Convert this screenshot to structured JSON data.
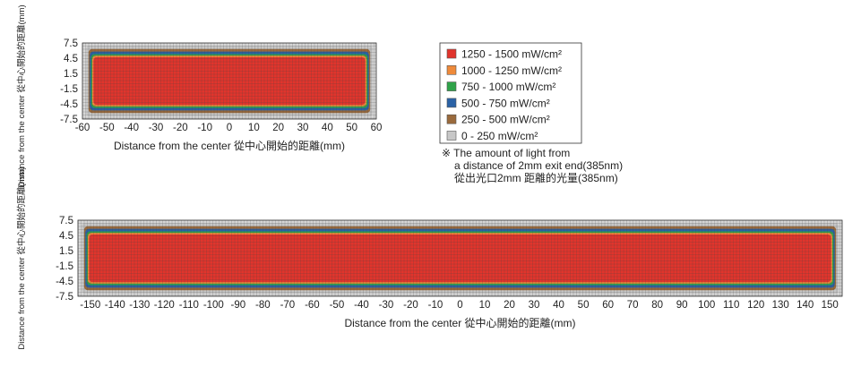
{
  "chart_data": [
    {
      "type": "heatmap",
      "title": "",
      "xlabel": "Distance from the center 從中心開始的距離(mm)",
      "ylabel": "Distance from the center 從中心開始的距離(mm)",
      "xlim": [
        -60,
        60
      ],
      "ylim": [
        -7.5,
        7.5
      ],
      "x_ticks": [
        "-60",
        "-50",
        "-40",
        "-30",
        "-20",
        "-10",
        "0",
        "10",
        "20",
        "30",
        "40",
        "50",
        "60"
      ],
      "y_ticks": [
        "7.5",
        "4.5",
        "1.5",
        "-1.5",
        "-4.5",
        "-7.5"
      ],
      "grid": true,
      "rings": [
        {
          "band": "0 - 250",
          "x": [
            -58.5,
            58.5
          ],
          "y": [
            -7.0,
            7.0
          ]
        },
        {
          "band": "250 - 500",
          "x": [
            -57.5,
            57.5
          ],
          "y": [
            -6.3,
            6.3
          ]
        },
        {
          "band": "500 - 750",
          "x": [
            -57.0,
            57.0
          ],
          "y": [
            -5.8,
            5.8
          ]
        },
        {
          "band": "750 - 1000",
          "x": [
            -56.5,
            56.5
          ],
          "y": [
            -5.3,
            5.3
          ]
        },
        {
          "band": "1000 - 1250",
          "x": [
            -56.0,
            56.0
          ],
          "y": [
            -5.0,
            5.0
          ]
        },
        {
          "band": "1250 - 1500",
          "x": [
            -55.5,
            55.5
          ],
          "y": [
            -4.7,
            4.7
          ]
        }
      ]
    },
    {
      "type": "heatmap",
      "title": "",
      "xlabel": "Distance from the center 從中心開始的距離(mm)",
      "ylabel": "Distance from the center 從中心開始的距離(mm)",
      "xlim": [
        -155,
        155
      ],
      "ylim": [
        -7.5,
        7.5
      ],
      "x_ticks": [
        "-150",
        "-140",
        "-130",
        "-120",
        "-110",
        "-100",
        "-90",
        "-80",
        "-70",
        "-60",
        "-50",
        "-40",
        "-30",
        "-20",
        "-10",
        "0",
        "10",
        "20",
        "30",
        "40",
        "50",
        "60",
        "70",
        "80",
        "90",
        "100",
        "110",
        "120",
        "130",
        "140",
        "150"
      ],
      "y_ticks": [
        "7.5",
        "4.5",
        "1.5",
        "-1.5",
        "-4.5",
        "-7.5"
      ],
      "grid": true,
      "rings": [
        {
          "band": "0 - 250",
          "x": [
            -153.5,
            153.5
          ],
          "y": [
            -7.0,
            7.0
          ]
        },
        {
          "band": "250 - 500",
          "x": [
            -152.5,
            152.5
          ],
          "y": [
            -6.3,
            6.3
          ]
        },
        {
          "band": "500 - 750",
          "x": [
            -152.0,
            152.0
          ],
          "y": [
            -5.8,
            5.8
          ]
        },
        {
          "band": "750 - 1000",
          "x": [
            -151.5,
            151.5
          ],
          "y": [
            -5.3,
            5.3
          ]
        },
        {
          "band": "1000 - 1250",
          "x": [
            -151.0,
            151.0
          ],
          "y": [
            -5.0,
            5.0
          ]
        },
        {
          "band": "1250 - 1500",
          "x": [
            -150.5,
            150.5
          ],
          "y": [
            -4.7,
            4.7
          ]
        }
      ]
    }
  ],
  "legend": {
    "placement": "right",
    "items": [
      {
        "label": "1250 - 1500 mW/cm²",
        "color": "#e1342c"
      },
      {
        "label": "1000 - 1250 mW/cm²",
        "color": "#ef8a3a"
      },
      {
        "label": "750 - 1000 mW/cm²",
        "color": "#2fa349"
      },
      {
        "label": "500 - 750 mW/cm²",
        "color": "#2a62a6"
      },
      {
        "label": "250 - 500 mW/cm²",
        "color": "#9a6a3c"
      },
      {
        "label": "0 - 250 mW/cm²",
        "color": "#c7c7c7"
      }
    ]
  },
  "note": {
    "lines": [
      "※ The amount of light from",
      "a distance of 2mm exit end(385nm)",
      "從出光口2mm 距離的光量(385nm)"
    ]
  },
  "colors": {
    "grid_line": "#444444",
    "plot_background": "#d7d7d7",
    "text": "#222222"
  }
}
